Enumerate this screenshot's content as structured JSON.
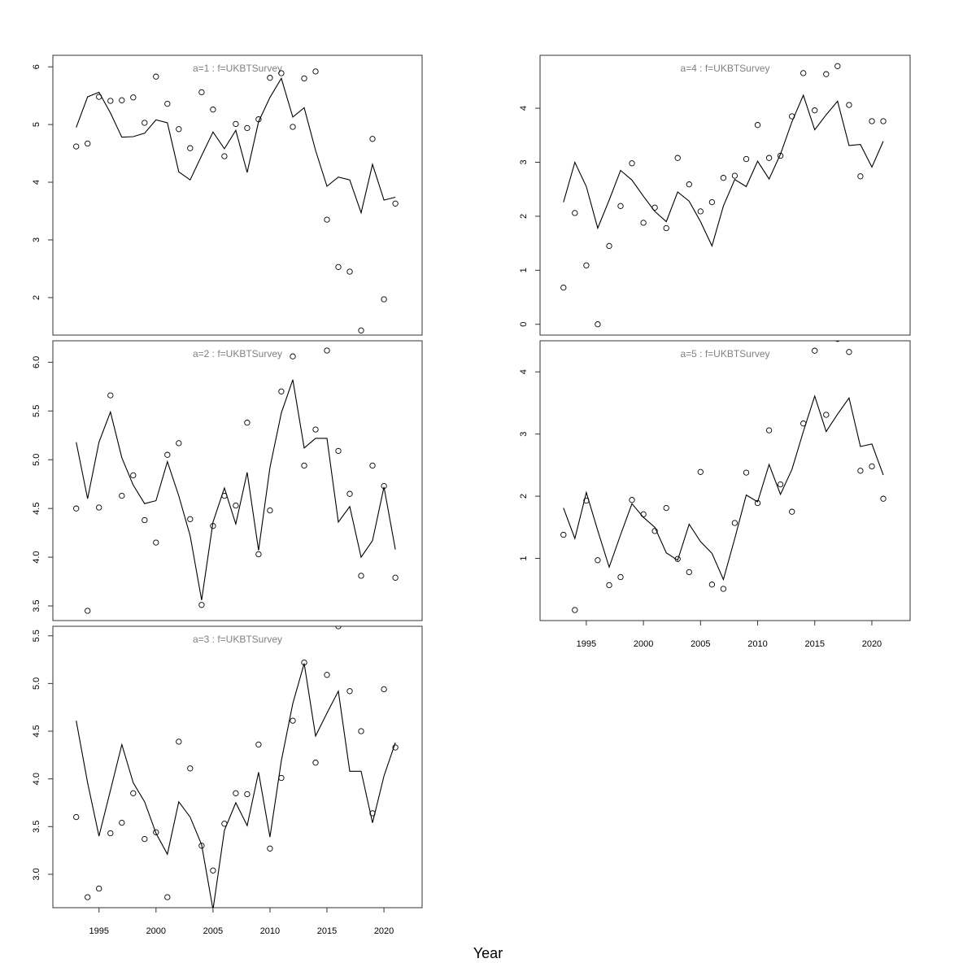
{
  "figure": {
    "xlabel": "Year"
  },
  "chart_data": [
    {
      "type": "line",
      "title": "a=1  :  f=UKBTSurvey",
      "x": [
        1993,
        1994,
        1995,
        1996,
        1997,
        1998,
        1999,
        2000,
        2001,
        2002,
        2003,
        2004,
        2005,
        2006,
        2007,
        2008,
        2009,
        2010,
        2011,
        2012,
        2013,
        2014,
        2015,
        2016,
        2017,
        2018,
        2019,
        2020,
        2021
      ],
      "ylim": [
        1.35,
        6.2
      ],
      "yticks": [
        2,
        3,
        4,
        5,
        6
      ],
      "series": [
        {
          "kind": "fitted-line",
          "values": [
            4.95,
            5.48,
            5.56,
            5.2,
            4.78,
            4.79,
            4.85,
            5.08,
            5.03,
            4.18,
            4.04,
            4.46,
            4.87,
            4.58,
            4.9,
            4.17,
            5.05,
            5.47,
            5.8,
            5.13,
            5.29,
            4.55,
            3.93,
            4.09,
            4.04,
            3.47,
            4.31,
            3.69,
            3.74
          ]
        },
        {
          "kind": "observed-points",
          "values": [
            4.62,
            4.67,
            5.48,
            5.41,
            5.42,
            5.47,
            5.03,
            5.83,
            5.36,
            4.92,
            4.59,
            5.56,
            5.26,
            4.45,
            5.01,
            4.94,
            5.09,
            5.81,
            5.89,
            4.96,
            5.8,
            5.92,
            3.35,
            2.53,
            2.45,
            1.43,
            4.75,
            1.97,
            3.63
          ]
        }
      ]
    },
    {
      "type": "line",
      "title": "a=2  :  f=UKBTSurvey",
      "x": [
        1993,
        1994,
        1995,
        1996,
        1997,
        1998,
        1999,
        2000,
        2001,
        2002,
        2003,
        2004,
        2005,
        2006,
        2007,
        2008,
        2009,
        2010,
        2011,
        2012,
        2013,
        2014,
        2015,
        2016,
        2017,
        2018,
        2019,
        2020,
        2021
      ],
      "ylim": [
        3.35,
        6.22
      ],
      "yticks": [
        3.5,
        4.0,
        4.5,
        5.0,
        5.5,
        6.0
      ],
      "series": [
        {
          "kind": "fitted-line",
          "values": [
            5.18,
            4.6,
            5.18,
            5.49,
            5.02,
            4.74,
            4.55,
            4.58,
            4.98,
            4.63,
            4.22,
            3.56,
            4.36,
            4.71,
            4.34,
            4.87,
            4.07,
            4.92,
            5.48,
            5.82,
            5.12,
            5.22,
            5.22,
            4.36,
            4.52,
            4.0,
            4.17,
            4.72,
            4.08
          ]
        },
        {
          "kind": "observed-points",
          "values": [
            4.5,
            3.45,
            4.51,
            5.66,
            4.63,
            4.84,
            4.38,
            4.15,
            5.05,
            5.17,
            4.39,
            3.51,
            4.32,
            4.63,
            4.53,
            5.38,
            4.03,
            4.48,
            5.7,
            6.06,
            4.94,
            5.31,
            6.12,
            5.09,
            4.65,
            3.81,
            4.94,
            4.73,
            3.79
          ]
        }
      ]
    },
    {
      "type": "line",
      "title": "a=3  :  f=UKBTSurvey",
      "x": [
        1993,
        1994,
        1995,
        1996,
        1997,
        1998,
        1999,
        2000,
        2001,
        2002,
        2003,
        2004,
        2005,
        2006,
        2007,
        2008,
        2009,
        2010,
        2011,
        2012,
        2013,
        2014,
        2015,
        2016,
        2017,
        2018,
        2019,
        2020,
        2021
      ],
      "ylim": [
        2.65,
        5.6
      ],
      "yticks": [
        3.0,
        3.5,
        4.0,
        4.5,
        5.0,
        5.5
      ],
      "series": [
        {
          "kind": "fitted-line",
          "values": [
            4.61,
            3.96,
            3.4,
            3.88,
            4.36,
            3.96,
            3.76,
            3.43,
            3.21,
            3.76,
            3.6,
            3.31,
            2.63,
            3.46,
            3.75,
            3.51,
            4.07,
            3.39,
            4.19,
            4.79,
            5.21,
            4.45,
            4.69,
            4.92,
            4.08,
            4.08,
            3.54,
            4.03,
            4.38
          ]
        },
        {
          "kind": "observed-points",
          "values": [
            3.6,
            2.76,
            2.85,
            3.43,
            3.54,
            3.85,
            3.37,
            3.44,
            2.76,
            4.39,
            4.11,
            3.3,
            3.04,
            3.53,
            3.85,
            3.84,
            4.36,
            3.27,
            4.01,
            4.61,
            5.22,
            4.17,
            5.09,
            5.6,
            4.92,
            4.5,
            3.64,
            4.94,
            4.33
          ]
        }
      ]
    },
    {
      "type": "line",
      "title": "a=4  :  f=UKBTSurvey",
      "x": [
        1993,
        1994,
        1995,
        1996,
        1997,
        1998,
        1999,
        2000,
        2001,
        2002,
        2003,
        2004,
        2005,
        2006,
        2007,
        2008,
        2009,
        2010,
        2011,
        2012,
        2013,
        2014,
        2015,
        2016,
        2017,
        2018,
        2019,
        2020,
        2021
      ],
      "ylim": [
        -0.2,
        4.98
      ],
      "yticks": [
        0,
        1,
        2,
        3,
        4
      ],
      "series": [
        {
          "kind": "fitted-line",
          "values": [
            2.26,
            3.0,
            2.55,
            1.78,
            2.3,
            2.85,
            2.67,
            2.37,
            2.09,
            1.9,
            2.45,
            2.28,
            1.9,
            1.45,
            2.19,
            2.68,
            2.55,
            3.02,
            2.69,
            3.15,
            3.75,
            4.24,
            3.6,
            3.88,
            4.13,
            3.31,
            3.33,
            2.91,
            3.39
          ]
        },
        {
          "kind": "observed-points",
          "values": [
            0.68,
            2.06,
            1.09,
            0.0,
            1.45,
            2.19,
            2.98,
            1.88,
            2.16,
            1.78,
            3.08,
            2.59,
            2.09,
            2.26,
            2.71,
            2.75,
            3.06,
            3.69,
            3.08,
            3.12,
            3.85,
            4.65,
            3.96,
            4.63,
            4.78,
            4.06,
            2.74,
            3.76,
            3.76
          ]
        }
      ]
    },
    {
      "type": "line",
      "title": "a=5  :  f=UKBTSurvey",
      "x": [
        1993,
        1994,
        1995,
        1996,
        1997,
        1998,
        1999,
        2000,
        2001,
        2002,
        2003,
        2004,
        2005,
        2006,
        2007,
        2008,
        2009,
        2010,
        2011,
        2012,
        2013,
        2014,
        2015,
        2016,
        2017,
        2018,
        2019,
        2020,
        2021
      ],
      "ylim": [
        0.0,
        4.5
      ],
      "yticks": [
        1,
        2,
        3,
        4
      ],
      "series": [
        {
          "kind": "fitted-line",
          "values": [
            1.81,
            1.32,
            2.06,
            1.45,
            0.86,
            1.38,
            1.88,
            1.66,
            1.5,
            1.09,
            0.97,
            1.55,
            1.27,
            1.08,
            0.66,
            1.32,
            2.02,
            1.91,
            2.51,
            2.03,
            2.43,
            3.04,
            3.61,
            3.04,
            3.32,
            3.58,
            2.8,
            2.84,
            2.34
          ]
        },
        {
          "kind": "observed-points",
          "values": [
            1.38,
            0.17,
            1.93,
            0.97,
            0.57,
            0.7,
            1.94,
            1.71,
            1.44,
            1.81,
            0.99,
            0.78,
            2.39,
            0.58,
            0.51,
            1.57,
            2.38,
            1.89,
            3.06,
            2.19,
            1.75,
            3.17,
            4.34,
            3.31,
            4.53,
            4.32,
            2.41,
            2.48,
            1.96
          ]
        }
      ]
    }
  ],
  "xaxis": {
    "ticks": [
      1995,
      2000,
      2005,
      2010,
      2015,
      2020
    ],
    "range": [
      1990.95,
      2023.35
    ]
  }
}
